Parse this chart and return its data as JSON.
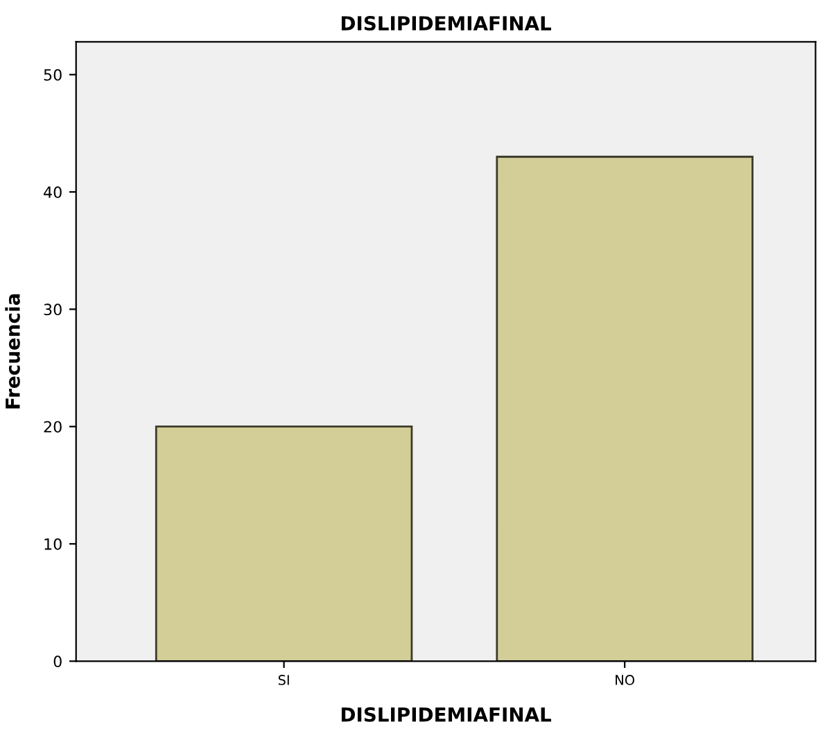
{
  "chart_data": {
    "type": "bar",
    "title": "DISLIPIDEMIAFINAL",
    "xlabel": "DISLIPIDEMIAFINAL",
    "ylabel": "Frecuencia",
    "categories": [
      "SI",
      "NO"
    ],
    "values": [
      20,
      43
    ],
    "color": "#d3ce97",
    "ylim": [
      0,
      52.8
    ],
    "yticks": [
      0,
      10,
      20,
      30,
      40,
      50
    ],
    "grid": false,
    "legend": false
  }
}
